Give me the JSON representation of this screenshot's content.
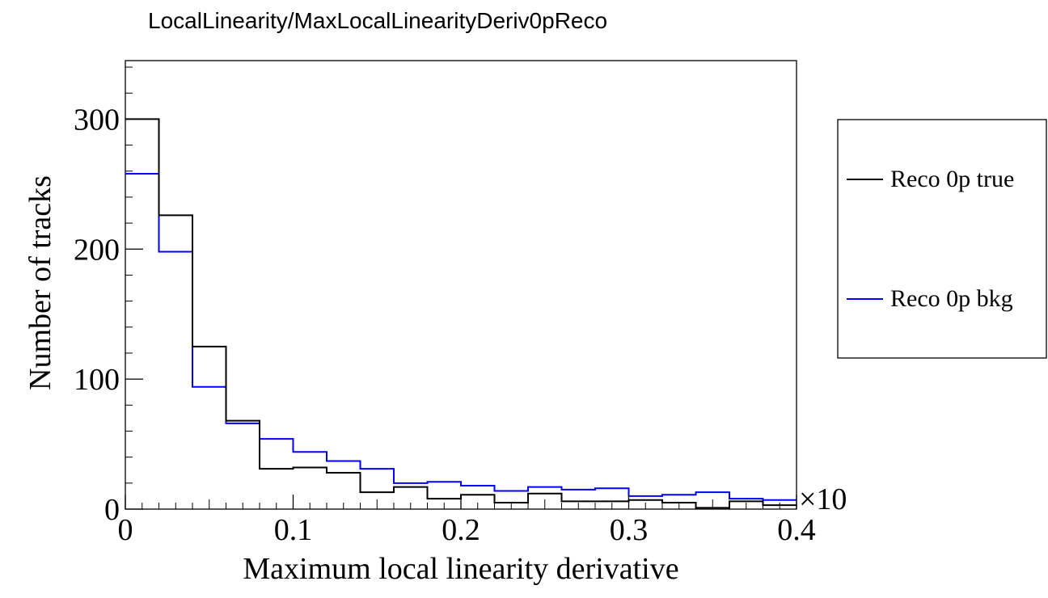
{
  "chart_data": {
    "type": "histogram",
    "title": "LocalLinearity/MaxLocalLinearityDeriv0pReco",
    "xlabel": "Maximum local linearity derivative",
    "ylabel": "Number of tracks",
    "x_exponent_label": "×10",
    "xlim": [
      0,
      0.4
    ],
    "ylim": [
      0,
      345
    ],
    "x_ticks": [
      "0",
      "0.1",
      "0.2",
      "0.3",
      "0.4"
    ],
    "y_ticks": [
      "0",
      "100",
      "200",
      "300"
    ],
    "bin_edges": [
      0,
      0.02,
      0.04,
      0.06,
      0.08,
      0.1,
      0.12,
      0.14,
      0.16,
      0.18,
      0.2,
      0.22,
      0.24,
      0.26,
      0.28,
      0.3,
      0.32,
      0.34,
      0.36,
      0.38,
      0.4
    ],
    "series": [
      {
        "name": "Reco 0p true",
        "color": "#000000",
        "values": [
          300,
          226,
          125,
          68,
          31,
          32,
          28,
          13,
          17,
          8,
          11,
          5,
          12,
          6,
          6,
          7,
          5,
          1,
          6,
          3
        ]
      },
      {
        "name": "Reco 0p bkg",
        "color": "#0000ff",
        "values": [
          258,
          198,
          94,
          66,
          54,
          44,
          37,
          31,
          20,
          21,
          18,
          14,
          17,
          15,
          16,
          10,
          11,
          13,
          8,
          7
        ]
      }
    ],
    "legend_position": "right",
    "grid": false
  }
}
